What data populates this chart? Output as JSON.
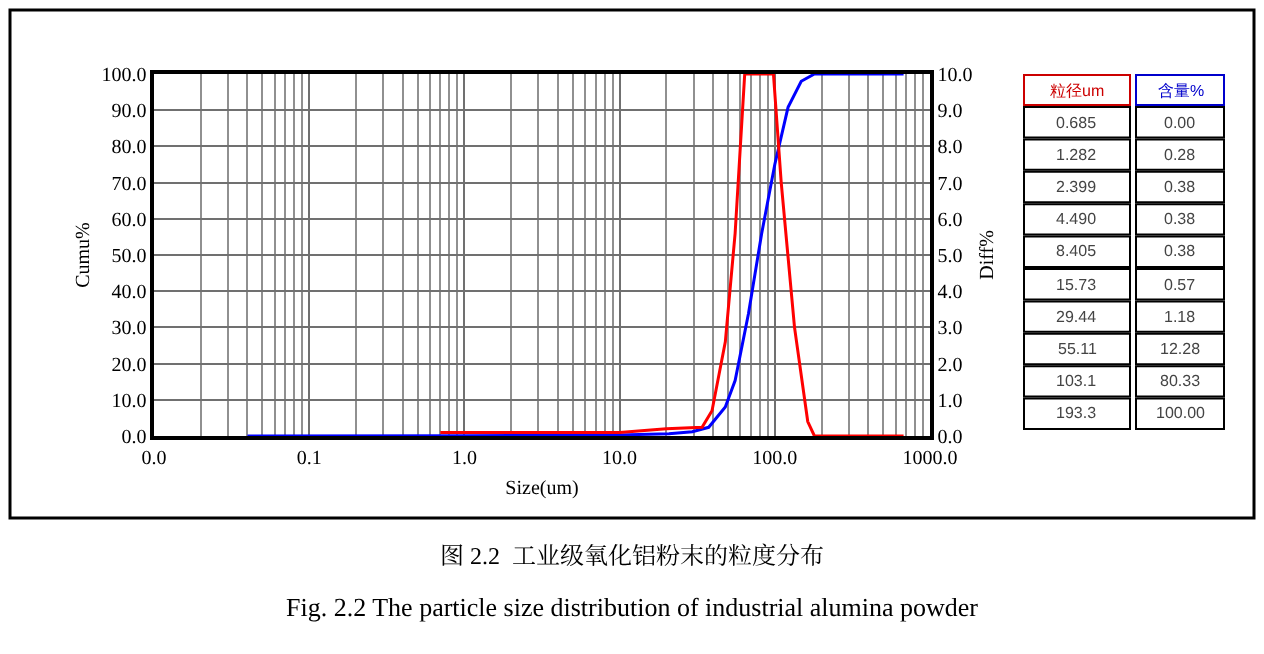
{
  "chart_data": [
    {
      "type": "line",
      "title": "图 2.2  工业级氧化铝粉末的粒度分布",
      "subtitle": "Fig. 2.2 The particle size distribution of industrial alumina powder",
      "xlabel": "Size(um)",
      "ylabel": "Cumu%",
      "y2label": "Diff%",
      "log": "x",
      "grid": true,
      "marker": "none",
      "line_style": "solid",
      "xlim": [
        0.01,
        1000
      ],
      "xticks": [
        {
          "value": 0.01,
          "label": "0.0"
        },
        0.1,
        {
          "value": 1,
          "label": "1.0"
        },
        {
          "value": 10,
          "label": "10.0"
        },
        {
          "value": 100,
          "label": "100.0"
        },
        {
          "value": 1000,
          "label": "1000.0"
        }
      ],
      "ylim": [
        0,
        100
      ],
      "yticks": [
        {
          "value": 0,
          "label": "0.0"
        },
        {
          "value": 10,
          "label": "10.0"
        },
        {
          "value": 20,
          "label": "20.0"
        },
        {
          "value": 30,
          "label": "30.0"
        },
        {
          "value": 40,
          "label": "40.0"
        },
        {
          "value": 50,
          "label": "50.0"
        },
        {
          "value": 60,
          "label": "60.0"
        },
        {
          "value": 70,
          "label": "70.0"
        },
        {
          "value": 80,
          "label": "80.0"
        },
        {
          "value": 90,
          "label": "90.0"
        },
        {
          "value": 100,
          "label": "100.0"
        }
      ],
      "y2lim": [
        0,
        10
      ],
      "y2ticks": [
        {
          "value": 0,
          "label": "0.0"
        },
        {
          "value": 1,
          "label": "1.0"
        },
        {
          "value": 2,
          "label": "2.0"
        },
        {
          "value": 3,
          "label": "3.0"
        },
        {
          "value": 4,
          "label": "4.0"
        },
        {
          "value": 5,
          "label": "5.0"
        },
        {
          "value": 6,
          "label": "6.0"
        },
        {
          "value": 7,
          "label": "7.0"
        },
        {
          "value": 8,
          "label": "8.0"
        },
        {
          "value": 9,
          "label": "9.0"
        },
        {
          "value": 10,
          "label": "10.0"
        }
      ],
      "series": [
        {
          "color": "#0000ff",
          "x": [
            0.04,
            1,
            10,
            20.8,
            29.4,
            37.5,
            48,
            55.5,
            67.6,
            82.2,
            100,
            121.7,
            148,
            180,
            676
          ],
          "values": [
            0,
            0.1,
            0.3,
            0.6,
            1.2,
            2.4,
            8,
            15.3,
            33.7,
            55.8,
            75,
            90.8,
            98,
            100,
            100
          ]
        },
        {
          "color": "#ff0000",
          "axis": "y2",
          "x": [
            0.7,
            2,
            10,
            20,
            34,
            39.4,
            48,
            55.5,
            64,
            98,
            110,
            134,
            163,
            180,
            676
          ],
          "values": [
            0.1,
            0.1,
            0.1,
            0.2,
            0.24,
            0.7,
            2.6,
            5.6,
            10,
            10,
            7,
            3,
            0.4,
            0,
            0
          ]
        }
      ]
    },
    {
      "type": "other",
      "colors": [
        "#cc0000",
        "#0000cc"
      ],
      "annotations": [
        "粒径um",
        "含量%",
        "0.685",
        "0.00",
        "1.282",
        "0.28",
        "2.399",
        "0.38",
        "4.490",
        "0.38",
        "8.405",
        "0.38",
        "15.73",
        "0.57",
        "29.44",
        "1.18",
        "55.11",
        "12.28",
        "103.1",
        "80.33",
        "193.3",
        "100.00"
      ]
    }
  ]
}
